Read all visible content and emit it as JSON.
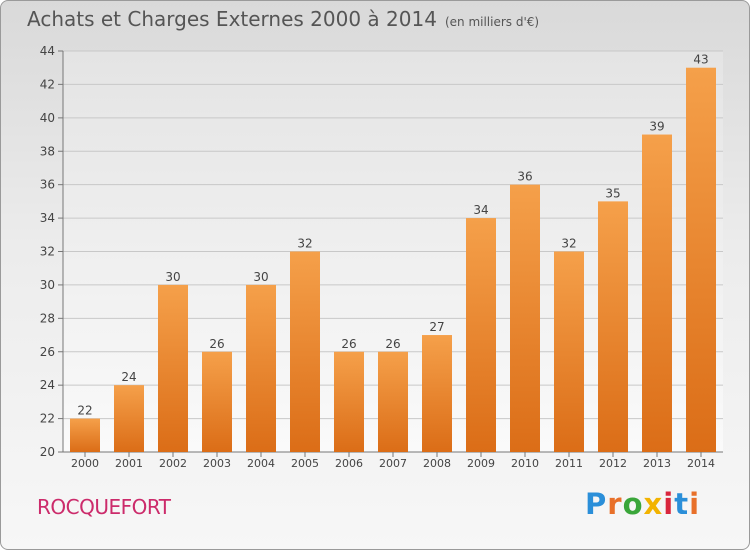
{
  "header": {
    "title": "Achats et Charges Externes 2000 à 2014",
    "unit": "(en milliers d'€)"
  },
  "footer": {
    "commune": "ROCQUEFORT",
    "logo_text": "Proxiti",
    "logo_colors": [
      "#2b8fd9",
      "#e8702a",
      "#3aa63a",
      "#f2b300",
      "#d9263d",
      "#2b8fd9",
      "#e8702a"
    ]
  },
  "colors": {
    "bar_top": "#f5a04a",
    "bar_bottom": "#db6d17",
    "axis_text": "#444444",
    "grid": "#c8c8c8"
  },
  "chart_data": {
    "type": "bar",
    "title": "Achats et Charges Externes 2000 à 2014",
    "subtitle": "(en milliers d'€)",
    "xlabel": "",
    "ylabel": "",
    "categories": [
      "2000",
      "2001",
      "2002",
      "2003",
      "2004",
      "2005",
      "2006",
      "2007",
      "2008",
      "2009",
      "2010",
      "2011",
      "2012",
      "2013",
      "2014"
    ],
    "values": [
      22,
      24,
      30,
      26,
      30,
      32,
      26,
      26,
      27,
      34,
      36,
      32,
      35,
      39,
      43
    ],
    "ylim": [
      20,
      44
    ],
    "yticks": [
      20,
      22,
      24,
      26,
      28,
      30,
      32,
      34,
      36,
      38,
      40,
      42,
      44
    ],
    "grid": true,
    "data_labels": true
  }
}
